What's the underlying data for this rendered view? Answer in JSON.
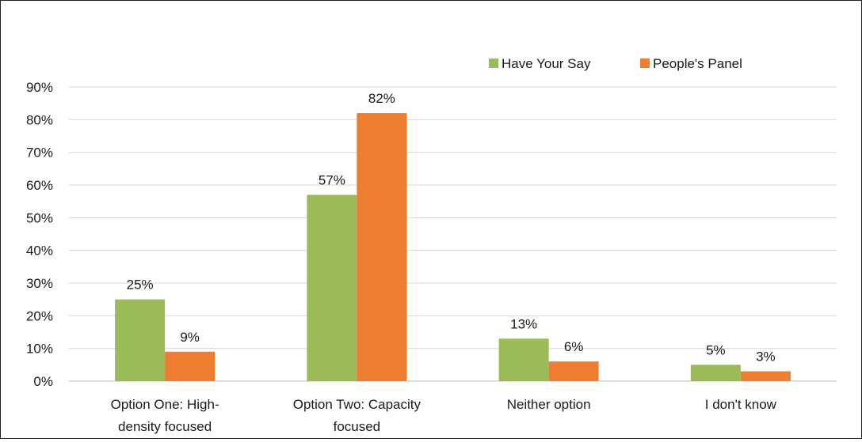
{
  "chart_data": {
    "type": "bar",
    "categories": [
      "Option One: High-density focused",
      "Option Two: Capacity focused",
      "Neither option",
      "I don't know"
    ],
    "category_label_lines": [
      [
        "Option One: High-",
        "density focused"
      ],
      [
        "Option Two: Capacity",
        "focused"
      ],
      [
        "Neither option"
      ],
      [
        "I don't know"
      ]
    ],
    "series": [
      {
        "name": "Have Your Say",
        "color": "#9bbb59",
        "values": [
          25,
          57,
          13,
          5
        ],
        "labels": [
          "25%",
          "57%",
          "13%",
          "5%"
        ]
      },
      {
        "name": "People's Panel",
        "color": "#ed7d31",
        "values": [
          9,
          82,
          6,
          3
        ],
        "labels": [
          "9%",
          "82%",
          "6%",
          "3%"
        ]
      }
    ],
    "ylim": [
      0,
      90
    ],
    "yticks": [
      0,
      10,
      20,
      30,
      40,
      50,
      60,
      70,
      80,
      90
    ],
    "ytick_labels": [
      "0%",
      "10%",
      "20%",
      "30%",
      "40%",
      "50%",
      "60%",
      "70%",
      "80%",
      "90%"
    ],
    "grid": true,
    "gridline_color": "#d9d9d9",
    "legend_position": "top-right",
    "title": "",
    "xlabel": "",
    "ylabel": ""
  }
}
